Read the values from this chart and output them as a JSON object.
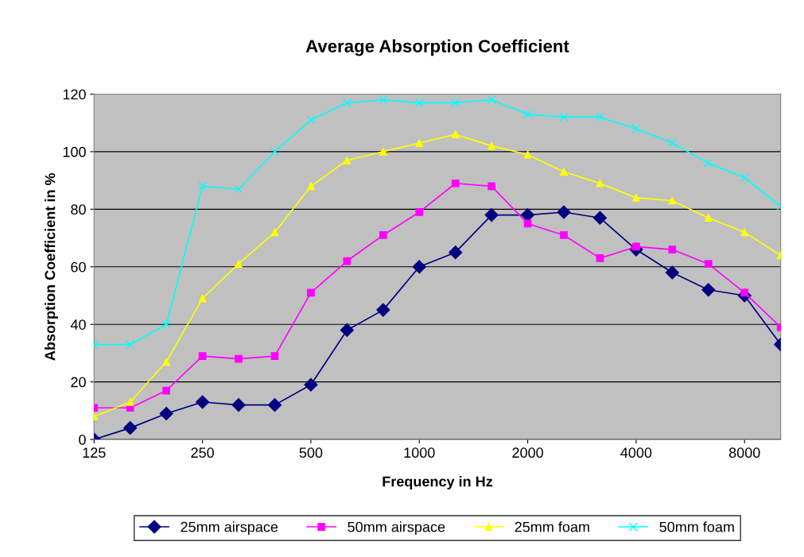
{
  "chart_data": {
    "type": "line",
    "title": "Average Absorption Coefficient",
    "xlabel": "Frequency in Hz",
    "ylabel": "Absorption Coefficient in %",
    "categories": [
      "125",
      null,
      null,
      "250",
      null,
      null,
      "500",
      null,
      null,
      "1000",
      null,
      null,
      "2000",
      null,
      null,
      "4000",
      null,
      null,
      "8000",
      null
    ],
    "series": [
      {
        "name": "25mm airspace",
        "color": "#000080",
        "marker": "diamond",
        "values": [
          0,
          4,
          9,
          13,
          12,
          12,
          19,
          38,
          45,
          60,
          65,
          78,
          78,
          79,
          77,
          66,
          58,
          52,
          50,
          33
        ]
      },
      {
        "name": "50mm airspace",
        "color": "#ff00ff",
        "marker": "square",
        "values": [
          11,
          11,
          17,
          29,
          28,
          29,
          51,
          62,
          71,
          79,
          89,
          88,
          75,
          71,
          63,
          67,
          66,
          61,
          51,
          39
        ]
      },
      {
        "name": "25mm foam",
        "color": "#ffff00",
        "marker": "triangle",
        "values": [
          8,
          13,
          27,
          49,
          61,
          72,
          88,
          97,
          100,
          103,
          106,
          102,
          99,
          93,
          89,
          84,
          83,
          77,
          72,
          64
        ]
      },
      {
        "name": "50mm foam",
        "color": "#00ffff",
        "marker": "cross",
        "values": [
          33,
          33,
          40,
          88,
          87,
          100,
          111,
          117,
          118,
          117,
          117,
          118,
          113,
          112,
          112,
          108,
          103,
          96,
          91,
          81
        ]
      }
    ],
    "ylim": [
      0,
      120
    ],
    "yticks": [
      0,
      20,
      40,
      60,
      80,
      100,
      120
    ],
    "grid": "y",
    "legend": "bottom",
    "line_style": "solid"
  }
}
